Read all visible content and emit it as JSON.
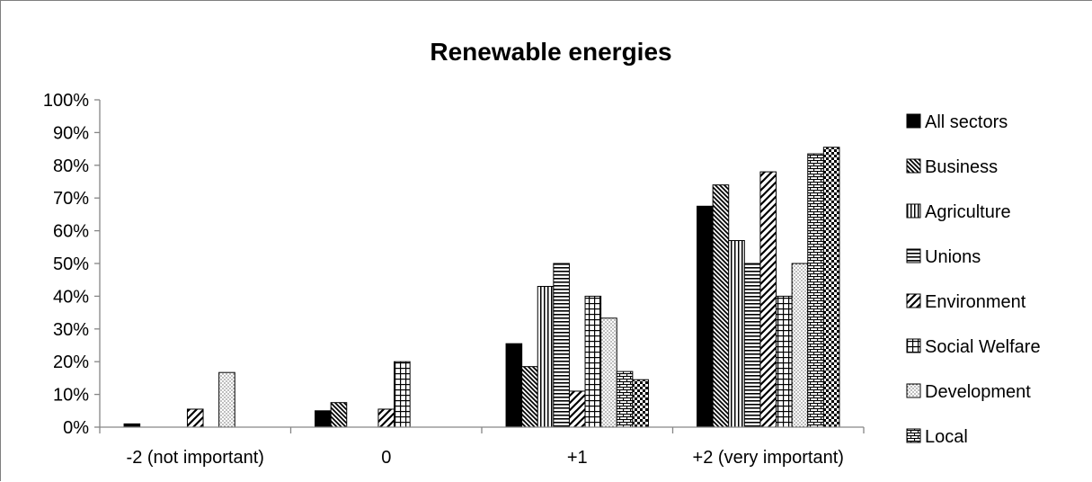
{
  "chart_data": {
    "type": "bar",
    "title": "Renewable energies",
    "xlabel": "",
    "ylabel": "",
    "ylim": [
      0,
      100
    ],
    "ytick_format": "percent",
    "yticks": [
      0,
      10,
      20,
      30,
      40,
      50,
      60,
      70,
      80,
      90,
      100
    ],
    "grid": false,
    "legend_position": "right",
    "categories": [
      "-2 (not important)",
      "0",
      "+1",
      "+2 (very important)"
    ],
    "series": [
      {
        "name": "All sectors",
        "values": [
          1,
          5,
          25.5,
          67.5
        ],
        "pattern": "solid"
      },
      {
        "name": "Business",
        "values": [
          0,
          7.5,
          18.5,
          74
        ],
        "pattern": "diag-back"
      },
      {
        "name": "Agriculture",
        "values": [
          0,
          0,
          43,
          57
        ],
        "pattern": "vertical"
      },
      {
        "name": "Unions",
        "values": [
          0,
          0,
          50,
          50
        ],
        "pattern": "horizontal"
      },
      {
        "name": "Environment",
        "values": [
          5.5,
          5.5,
          11,
          78
        ],
        "pattern": "diag-wide"
      },
      {
        "name": "Social Welfare",
        "values": [
          0,
          20,
          40,
          40
        ],
        "pattern": "grid"
      },
      {
        "name": "Development",
        "values": [
          16.7,
          0,
          33.3,
          50
        ],
        "pattern": "dots"
      },
      {
        "name": "Local",
        "values": [
          0,
          0,
          17,
          83.5
        ],
        "pattern": "brick"
      },
      {
        "name": "",
        "values": [
          0,
          0,
          14.5,
          85.5
        ],
        "pattern": "checker"
      }
    ]
  }
}
